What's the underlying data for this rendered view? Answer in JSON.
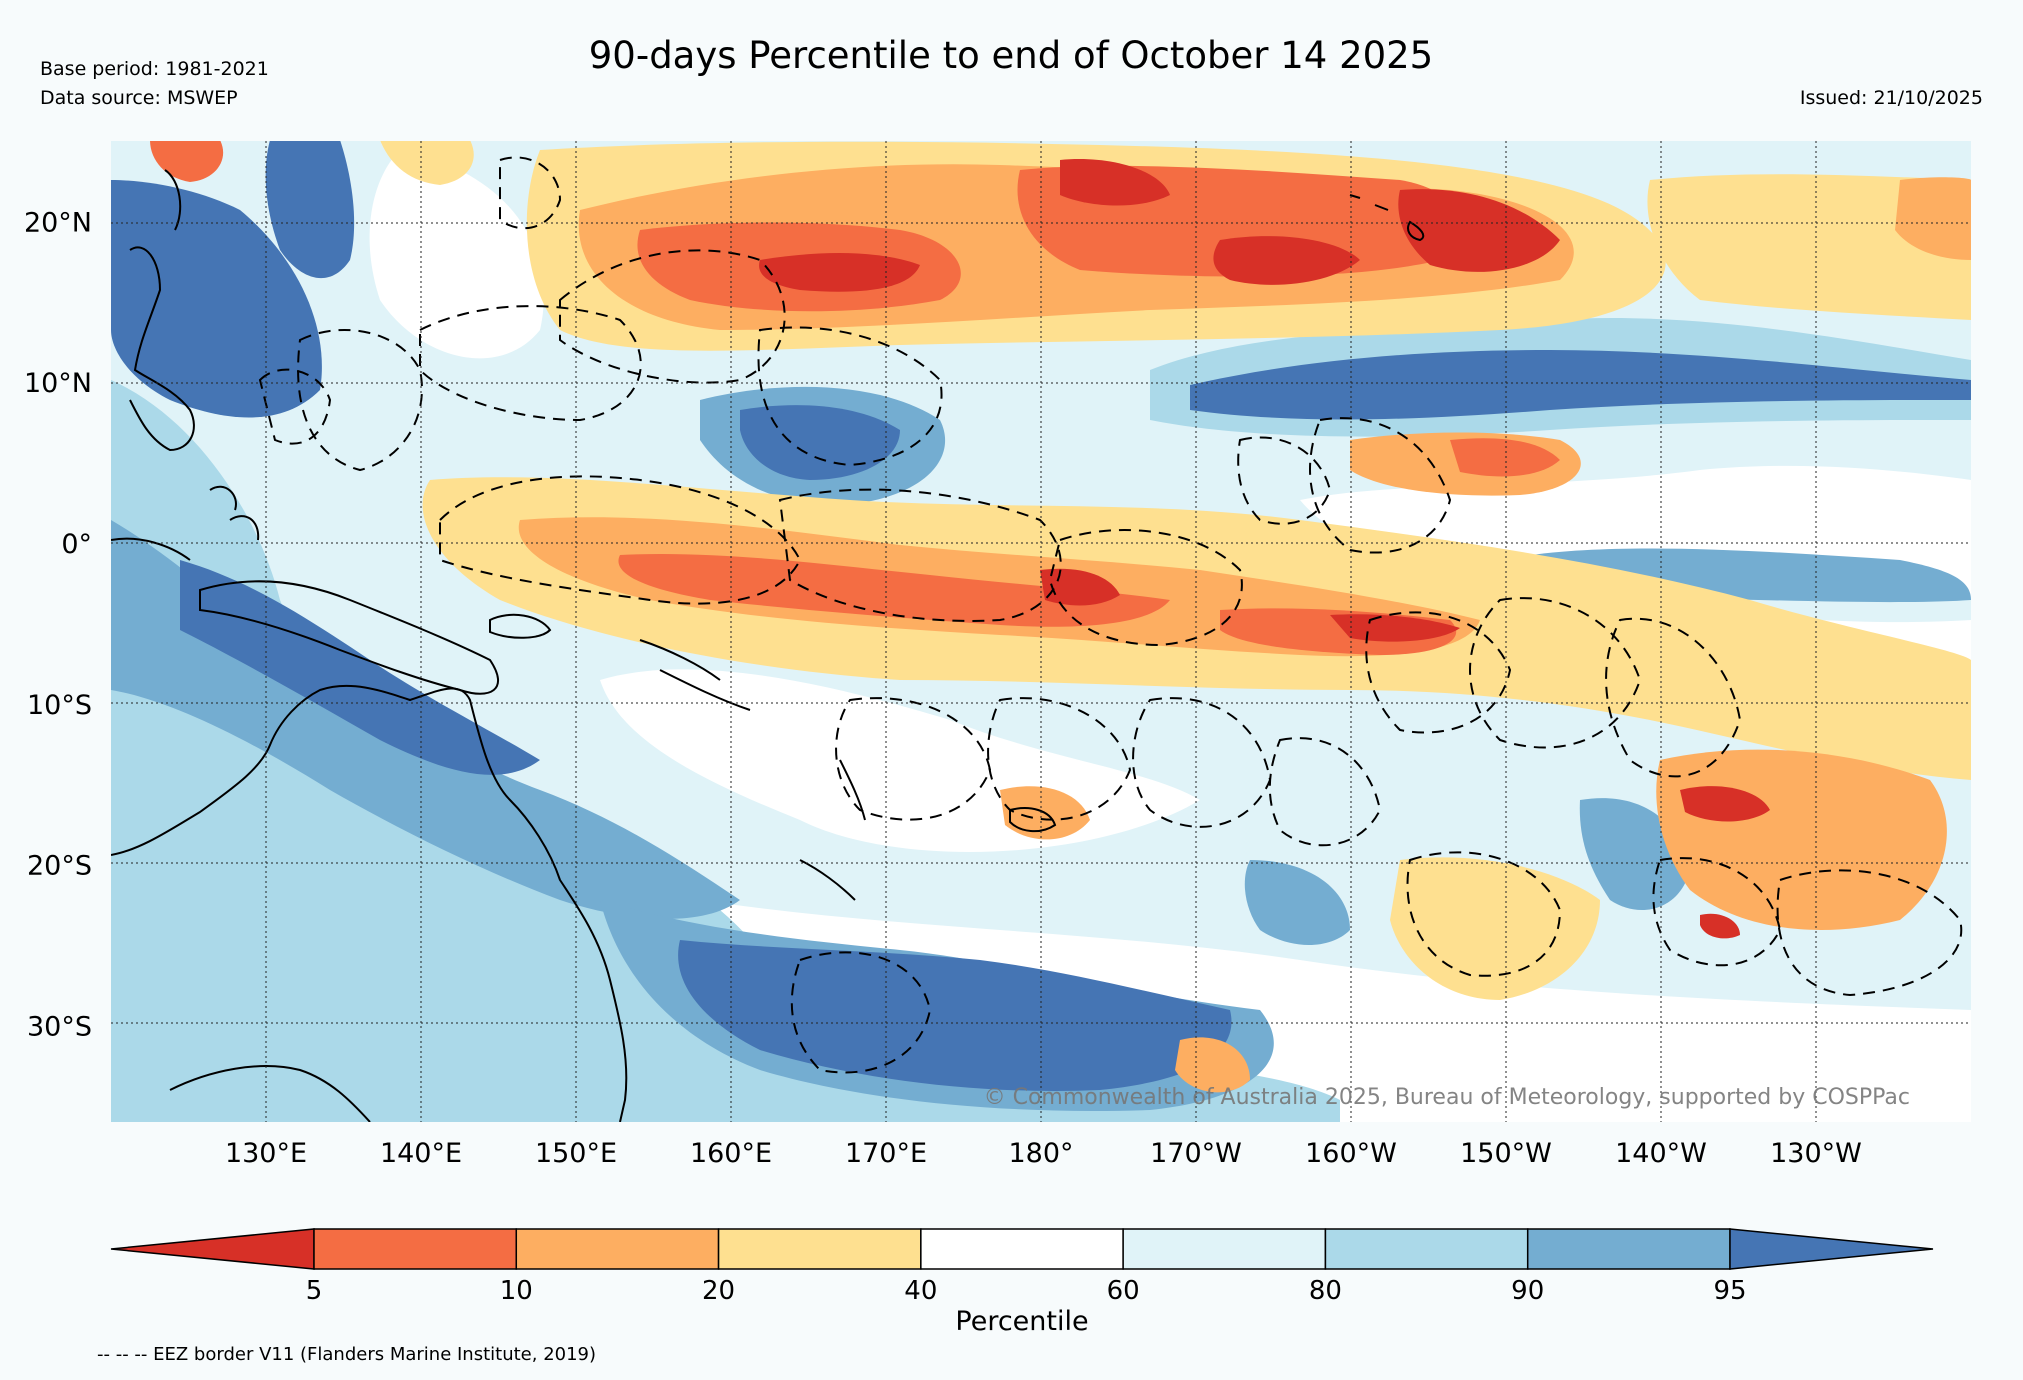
{
  "header": {
    "title": "90-days Percentile to end of October 14 2025",
    "base_period": "Base period: 1981-2021",
    "data_source": "Data source: MSWEP",
    "issued": "Issued: 21/10/2025"
  },
  "map": {
    "lon_range": [
      120,
      240
    ],
    "lat_range": [
      -36,
      25
    ],
    "lon_ticks": [
      {
        "lon": 130,
        "label": "130°E"
      },
      {
        "lon": 140,
        "label": "140°E"
      },
      {
        "lon": 150,
        "label": "150°E"
      },
      {
        "lon": 160,
        "label": "160°E"
      },
      {
        "lon": 170,
        "label": "170°E"
      },
      {
        "lon": 180,
        "label": "180°"
      },
      {
        "lon": 190,
        "label": "170°W"
      },
      {
        "lon": 200,
        "label": "160°W"
      },
      {
        "lon": 210,
        "label": "150°W"
      },
      {
        "lon": 220,
        "label": "140°W"
      },
      {
        "lon": 230,
        "label": "130°W"
      }
    ],
    "lat_ticks": [
      {
        "lat": 20,
        "label": "20°N"
      },
      {
        "lat": 10,
        "label": "10°N"
      },
      {
        "lat": 0,
        "label": "0°"
      },
      {
        "lat": -10,
        "label": "10°S"
      },
      {
        "lat": -20,
        "label": "20°S"
      },
      {
        "lat": -30,
        "label": "30°S"
      }
    ],
    "copyright": "© Commonwealth of Australia 2025, Bureau of Meteorology, supported by COSPPac"
  },
  "colorbar": {
    "label": "Percentile",
    "ticks": [
      "5",
      "10",
      "20",
      "40",
      "60",
      "80",
      "90",
      "95"
    ],
    "colors": [
      "#d73027",
      "#f46d43",
      "#fdae61",
      "#fee090",
      "#ffffff",
      "#e0f3f8",
      "#abd9e9",
      "#74add1",
      "#4575b4"
    ]
  },
  "footer": {
    "eez_note": "-- -- -- EEZ border V11 (Flanders Marine Institute, 2019)"
  }
}
